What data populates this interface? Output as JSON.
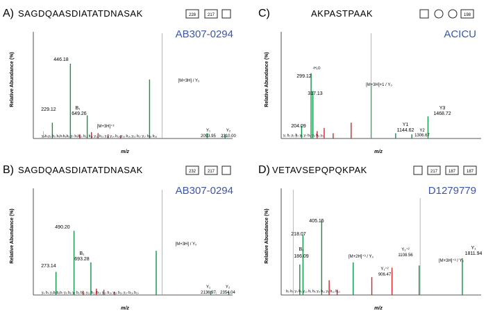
{
  "colors": {
    "green": "#0f9146",
    "red": "#d2232a",
    "gray": "#9a9a9a",
    "text": "#231f20",
    "accent": "#3d55a4"
  },
  "panels": [
    {
      "letter": "A)",
      "sequence": "SAGDQAASDIATATDNASAK",
      "glycan": [
        "228",
        "217",
        "box"
      ],
      "id": "AB307-0294",
      "ylabel": "Relative Abundance (%)",
      "xlabel": "m/z",
      "labels": [
        "229.12",
        "446.18",
        "B₁",
        "649.26",
        "[M+3H]⁺³",
        "[M+3H] / Y₀",
        "Y₁",
        "2093.95",
        "Y₂",
        "2310.00"
      ],
      "fragment_row": "y₄b₄y₅ b₅ b₆b₇b₈b₉ y₇ b₉b₁₀ b₁₁ b₁₂ y₁₂ b₁₃ y₁₃ y₁₄ b₁₅ y₁₅ b₁₆ y₁₆ b₁₇ y₁₇ b₁₈ b₁₉"
    },
    {
      "letter": "B)",
      "sequence": "SAGDQAASDIATATDNASAK",
      "glycan": [
        "232",
        "217",
        "box"
      ],
      "id": "AB307-0294",
      "ylabel": "Relative Abundance (%)",
      "xlabel": "m/z",
      "labels": [
        "273.14",
        "490.20",
        "B₁",
        "693.28",
        "[M+3H] / Y₀",
        "Y₁",
        "2136.97",
        "Y₂",
        "2354.04"
      ],
      "fragment_row": "y₄ b₄ y₅b₅b₆b₇ y₆ b₈ y₇ b₉ b₁₀ y₁₁ b₁₂ b₁₃ y₁₃ b₁₅ y₁₅ b₁₆ y₁₇ b₁₈ b₁₉"
    },
    {
      "letter": "C)",
      "sequence": "AKPASTPAAK",
      "glycan": [
        "box",
        "circle",
        "circle",
        "198"
      ],
      "id": "ACICU",
      "ylabel": "Relative Abundance (%)",
      "xlabel": "m/z",
      "labels": [
        "299.12",
        "-H₂O",
        "317.13",
        "204.09",
        "[M+3H]+1 / Y₀",
        "Y1",
        "1144.62",
        "Y2",
        "1306.67",
        "Y3",
        "1468.72"
      ],
      "fragment_row": "y₁ b₂ y₂ b₂ y₅ y₇ b₅ y₈ b₈ y₉"
    },
    {
      "letter": "D)",
      "sequence": "VETAVSEPQPQKPAK",
      "glycan": [
        "box",
        "217",
        "187",
        "187"
      ],
      "id": "D1279779",
      "ylabel": "Relative Abundance (%)",
      "xlabel": "m/z",
      "labels": [
        "405.15",
        "218.07",
        "B₁",
        "186.09",
        "[M+2H]⁺³ / Y₀",
        "Y₁⁺²",
        "906.47",
        "Y₂⁺²",
        "1108.56",
        "[M+3H]⁺³ / Y₀",
        "Y₁",
        "1811.94"
      ],
      "fragment_row": "b₂ b₃ y₄ b₅ y₁₀ b₁ b₆ y₈ b₁₁ y₉ b₁₂ b₁₃"
    }
  ],
  "chart_data": [
    {
      "type": "bar",
      "panel": "A",
      "xlim": [
        0,
        2400
      ],
      "ylim": [
        0,
        100
      ],
      "series": [
        {
          "color": "green",
          "x": [
            229.12,
            446.18,
            649.26,
            1400,
            2093.95,
            2310.0
          ],
          "values": [
            15,
            71,
            22,
            56,
            5,
            4
          ]
        },
        {
          "color": "gray",
          "x": [
            120,
            1550,
            2280
          ],
          "values": [
            7,
            100,
            4
          ]
        },
        {
          "color": "red",
          "x": [
            560,
            700,
            780,
            900,
            1050
          ],
          "values": [
            4,
            6,
            5,
            4,
            3
          ]
        }
      ]
    },
    {
      "type": "bar",
      "panel": "B",
      "xlim": [
        0,
        2400
      ],
      "ylim": [
        0,
        100
      ],
      "series": [
        {
          "color": "green",
          "x": [
            273.14,
            490.2,
            693.28,
            1480,
            2136.97,
            2354.04
          ],
          "values": [
            22,
            61,
            31,
            42,
            4,
            3
          ]
        },
        {
          "color": "gray",
          "x": [
            1550,
            2200
          ],
          "values": [
            100,
            3
          ]
        },
        {
          "color": "red",
          "x": [
            600,
            760,
            850,
            980
          ],
          "values": [
            4,
            6,
            5,
            3
          ]
        }
      ]
    },
    {
      "type": "bar",
      "panel": "C",
      "xlim": [
        0,
        2000
      ],
      "ylim": [
        0,
        100
      ],
      "series": [
        {
          "color": "green",
          "x": [
            204.09,
            299.12,
            317.13,
            900,
            1144.62,
            1306.67,
            1468.72
          ],
          "values": [
            12,
            62,
            45,
            50,
            5,
            4,
            21
          ]
        },
        {
          "color": "gray",
          "x": [
            150,
            900
          ],
          "values": [
            5,
            100
          ]
        },
        {
          "color": "red",
          "x": [
            360,
            430,
            520,
            700
          ],
          "values": [
            7,
            10,
            5,
            15
          ]
        }
      ]
    },
    {
      "type": "bar",
      "panel": "D",
      "xlim": [
        0,
        2000
      ],
      "ylim": [
        0,
        100
      ],
      "series": [
        {
          "color": "green",
          "x": [
            186.09,
            218.07,
            405.15,
            720,
            1380,
            1811.94
          ],
          "values": [
            29,
            57,
            71,
            31,
            28,
            35
          ]
        },
        {
          "color": "gray",
          "x": [
            120,
            1390
          ],
          "values": [
            100,
            92
          ]
        },
        {
          "color": "red",
          "x": [
            480,
            560,
            906.47,
            1108.56
          ],
          "values": [
            14,
            5,
            17,
            26
          ]
        }
      ]
    }
  ]
}
